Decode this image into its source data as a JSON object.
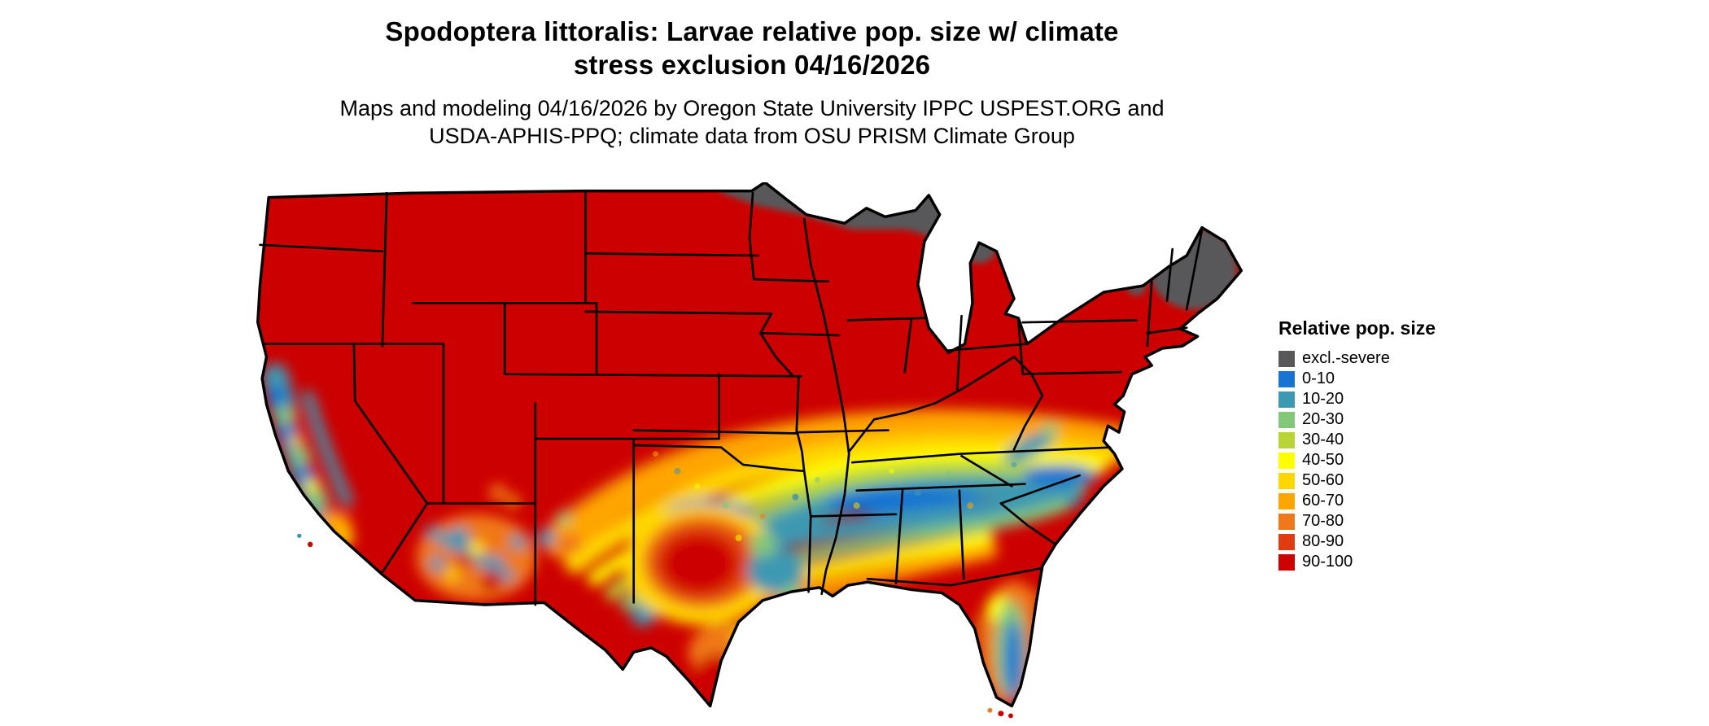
{
  "title": {
    "line1": "Spodoptera littoralis: Larvae relative pop. size w/ climate",
    "line2": "stress exclusion 04/16/2026"
  },
  "subtitle": {
    "line1": "Maps and modeling 04/16/2026 by Oregon State University IPPC USPEST.ORG and",
    "line2": "USDA-APHIS-PPQ; climate data from OSU PRISM Climate Group"
  },
  "map": {
    "area": "Contiguous United States",
    "background": "#ffffff",
    "border_color": "#000000"
  },
  "legend": {
    "title": "Relative pop. size",
    "items": [
      {
        "label": "excl.-severe",
        "color": "#58585a"
      },
      {
        "label": "0-10",
        "color": "#1874d2"
      },
      {
        "label": "10-20",
        "color": "#3d98b2"
      },
      {
        "label": "20-30",
        "color": "#82c878"
      },
      {
        "label": "30-40",
        "color": "#b9d435"
      },
      {
        "label": "40-50",
        "color": "#ffff00"
      },
      {
        "label": "50-60",
        "color": "#ffd700"
      },
      {
        "label": "60-70",
        "color": "#ffa500"
      },
      {
        "label": "70-80",
        "color": "#f07818"
      },
      {
        "label": "80-90",
        "color": "#e03c10"
      },
      {
        "label": "90-100",
        "color": "#cd0000"
      }
    ]
  }
}
